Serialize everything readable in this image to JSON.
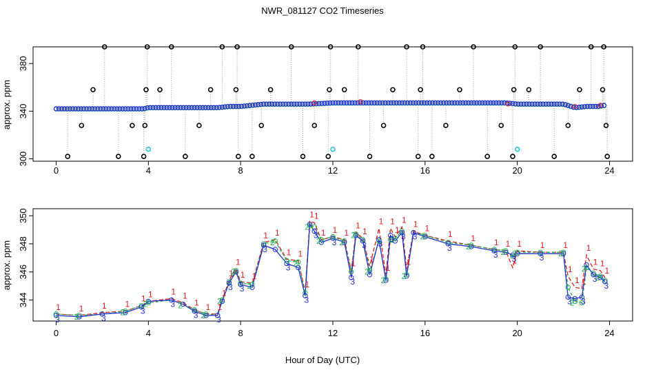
{
  "title": "NWR_081127  CO2 Timeseries",
  "xlabel": "Hour of Day (UTC)",
  "colors": {
    "s1": "#e31a1c",
    "s2": "#22b14c",
    "s3": "#1f2fd4",
    "flag": "#000000",
    "cyan": "#20c8d8",
    "grey": "#9a9a9a"
  },
  "chart_data": [
    {
      "type": "scatter",
      "panel": "top",
      "title": "",
      "ylabel": "approx. ppm",
      "xlim": [
        -1,
        25
      ],
      "ylim": [
        298,
        394
      ],
      "xticks": [
        0,
        4,
        8,
        12,
        16,
        20,
        24
      ],
      "yticks": [
        300,
        340,
        380
      ],
      "baseline_series": {
        "name": "measurements",
        "x": [
          0,
          2,
          3.8,
          4,
          6,
          7,
          7.5,
          8,
          9,
          10,
          11,
          12,
          13,
          13.5,
          14,
          15,
          16,
          18,
          19.5,
          20,
          22,
          22.5,
          23,
          23.5,
          23.8
        ],
        "y": [
          342,
          342,
          342,
          343,
          343,
          343,
          344,
          344,
          346,
          346,
          346,
          347,
          347,
          347,
          347,
          347,
          347,
          347,
          347,
          346,
          346,
          343,
          344,
          344,
          345
        ]
      },
      "black_outliers": {
        "x": [
          0.5,
          1.1,
          1.6,
          2.1,
          2.7,
          3.3,
          3.8,
          3.85,
          3.9,
          3.95,
          4.5,
          5.0,
          5.6,
          6.2,
          6.7,
          7.2,
          7.8,
          7.85,
          7.9,
          8.5,
          8.9,
          9.3,
          10.2,
          10.7,
          11.2,
          11.8,
          11.85,
          11.9,
          12.5,
          13.1,
          13.6,
          14.2,
          14.6,
          15.2,
          15.7,
          15.8,
          15.9,
          16.3,
          16.9,
          17.5,
          18.1,
          18.7,
          19.3,
          19.8,
          19.85,
          19.9,
          20.5,
          21.0,
          21.6,
          22.2,
          22.7,
          23.2,
          23.7,
          23.75,
          23.85,
          23.9
        ],
        "y": [
          302,
          328,
          358,
          394,
          302,
          328,
          302,
          328,
          358,
          394,
          358,
          394,
          302,
          328,
          358,
          394,
          358,
          394,
          302,
          302,
          328,
          358,
          394,
          302,
          328,
          302,
          358,
          394,
          358,
          394,
          302,
          328,
          358,
          394,
          302,
          358,
          394,
          302,
          328,
          358,
          394,
          302,
          328,
          302,
          358,
          394,
          358,
          394,
          302,
          328,
          358,
          394,
          358,
          394,
          328,
          302
        ]
      },
      "cyan_points": {
        "x": [
          4,
          12,
          20
        ],
        "y": [
          308,
          308,
          308
        ]
      }
    },
    {
      "type": "line",
      "panel": "bottom",
      "title": "",
      "ylabel": "approx. ppm",
      "xlim": [
        -1,
        25
      ],
      "ylim": [
        342.5,
        350.5
      ],
      "xticks": [
        0,
        4,
        8,
        12,
        16,
        20,
        24
      ],
      "yticks": [
        344,
        346,
        348,
        350
      ],
      "series": [
        {
          "name": "1",
          "x": [
            0,
            1,
            2,
            3,
            3.7,
            4,
            5,
            5.5,
            6,
            6.5,
            7,
            7.2,
            7.5,
            7.8,
            8,
            8.5,
            9,
            9.5,
            10,
            10.5,
            10.8,
            11,
            11.2,
            11.5,
            12,
            12.5,
            12.8,
            13,
            13.3,
            13.6,
            14,
            14.3,
            14.5,
            14.7,
            15,
            15.2,
            15.5,
            16,
            17,
            18,
            19,
            19.5,
            19.8,
            20,
            21,
            22,
            22.2,
            22.5,
            22.8,
            23,
            23.3,
            23.6,
            23.8
          ],
          "y": [
            343,
            342.9,
            343.1,
            343.2,
            343.6,
            343.9,
            344.1,
            343.8,
            343.3,
            343,
            343,
            344,
            345.4,
            346.2,
            345.3,
            345.2,
            348.1,
            348.3,
            346.9,
            346.8,
            344.6,
            349.6,
            349.5,
            348.3,
            348.5,
            348.3,
            346.1,
            348.8,
            348.4,
            346.4,
            349.1,
            345.8,
            349.1,
            348.5,
            349.2,
            346.2,
            348.9,
            348.6,
            348.2,
            347.9,
            347.6,
            347.5,
            346.3,
            347.5,
            347.4,
            347.4,
            345.7,
            344.9,
            344.8,
            347.2,
            346.2,
            346.1,
            345.6
          ]
        },
        {
          "name": "2",
          "x": [
            0,
            1,
            2,
            3,
            3.7,
            4,
            5,
            5.5,
            6,
            6.5,
            7,
            7.2,
            7.5,
            7.8,
            8,
            8.5,
            9,
            9.5,
            10,
            10.5,
            10.8,
            11,
            11.2,
            11.5,
            12,
            12.5,
            12.8,
            13,
            13.3,
            13.6,
            14,
            14.3,
            14.5,
            14.7,
            15,
            15.2,
            15.5,
            16,
            17,
            18,
            19,
            19.5,
            19.8,
            20,
            21,
            22,
            22.2,
            22.5,
            22.8,
            23,
            23.3,
            23.6,
            23.8
          ],
          "y": [
            343,
            342.9,
            343,
            343.2,
            343.6,
            343.8,
            344,
            343.7,
            343.3,
            343,
            342.9,
            344,
            345.3,
            346.1,
            345.2,
            345.1,
            348,
            348.2,
            346.8,
            346.7,
            344.5,
            349.3,
            349.2,
            348.3,
            348.5,
            348.2,
            346,
            348.7,
            348.3,
            346.1,
            348.2,
            345.5,
            348.3,
            348.4,
            348.9,
            345.8,
            348.8,
            348.6,
            348.1,
            347.9,
            347.6,
            347.5,
            347.1,
            347.4,
            347.4,
            347.4,
            344.9,
            343.9,
            343.8,
            346.3,
            345.9,
            345.7,
            345.4
          ]
        },
        {
          "name": "3",
          "x": [
            0,
            1,
            2,
            3,
            3.7,
            4,
            5,
            5.5,
            6,
            6.5,
            7,
            7.2,
            7.5,
            7.8,
            8,
            8.5,
            9,
            9.5,
            10,
            10.5,
            10.8,
            11,
            11.2,
            11.5,
            12,
            12.5,
            12.8,
            13,
            13.3,
            13.6,
            14,
            14.3,
            14.5,
            14.7,
            15,
            15.2,
            15.5,
            16,
            17,
            18,
            19,
            19.5,
            19.8,
            20,
            21,
            22,
            22.2,
            22.5,
            22.8,
            23,
            23.3,
            23.6,
            23.8
          ],
          "y": [
            342.9,
            342.8,
            343,
            343.1,
            343.5,
            343.9,
            344,
            343.7,
            343.2,
            342.9,
            342.9,
            343.9,
            345.2,
            346,
            345.1,
            344.9,
            347.9,
            347.6,
            346.6,
            346.3,
            344.3,
            349.4,
            348.9,
            348.1,
            348.4,
            348.1,
            345.6,
            348.6,
            348.2,
            345.8,
            348.3,
            345.4,
            348.6,
            348.2,
            348.8,
            345.7,
            348.8,
            348.5,
            348,
            347.8,
            347.5,
            347.4,
            347.2,
            347.3,
            347.3,
            347.3,
            344.2,
            344.1,
            344.2,
            346.5,
            345.8,
            345.6,
            345.3
          ]
        }
      ]
    }
  ]
}
